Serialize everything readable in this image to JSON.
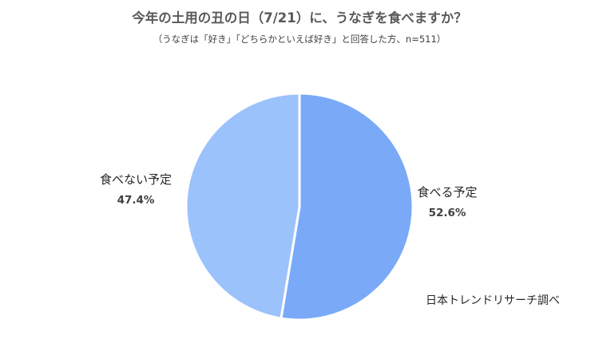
{
  "chart_data": {
    "type": "pie",
    "title": "今年の土用の丑の日（7/21）に、うなぎを食べますか？",
    "subtitle": "（うなぎは「好き」「どちらかといえば好き」と回答した方、n=511）",
    "slices": [
      {
        "label": "食べる予定",
        "value": 52.6,
        "display": "52.6%",
        "color": "#7aaaf7"
      },
      {
        "label": "食べない予定",
        "value": 47.4,
        "display": "47.4%",
        "color": "#9cc2fb"
      }
    ],
    "start_angle": "12 o'clock",
    "direction": "clockwise",
    "slice_border_color": "#ffffff",
    "legend": "none",
    "source_note": "日本トレンドリサーチ調べ"
  }
}
